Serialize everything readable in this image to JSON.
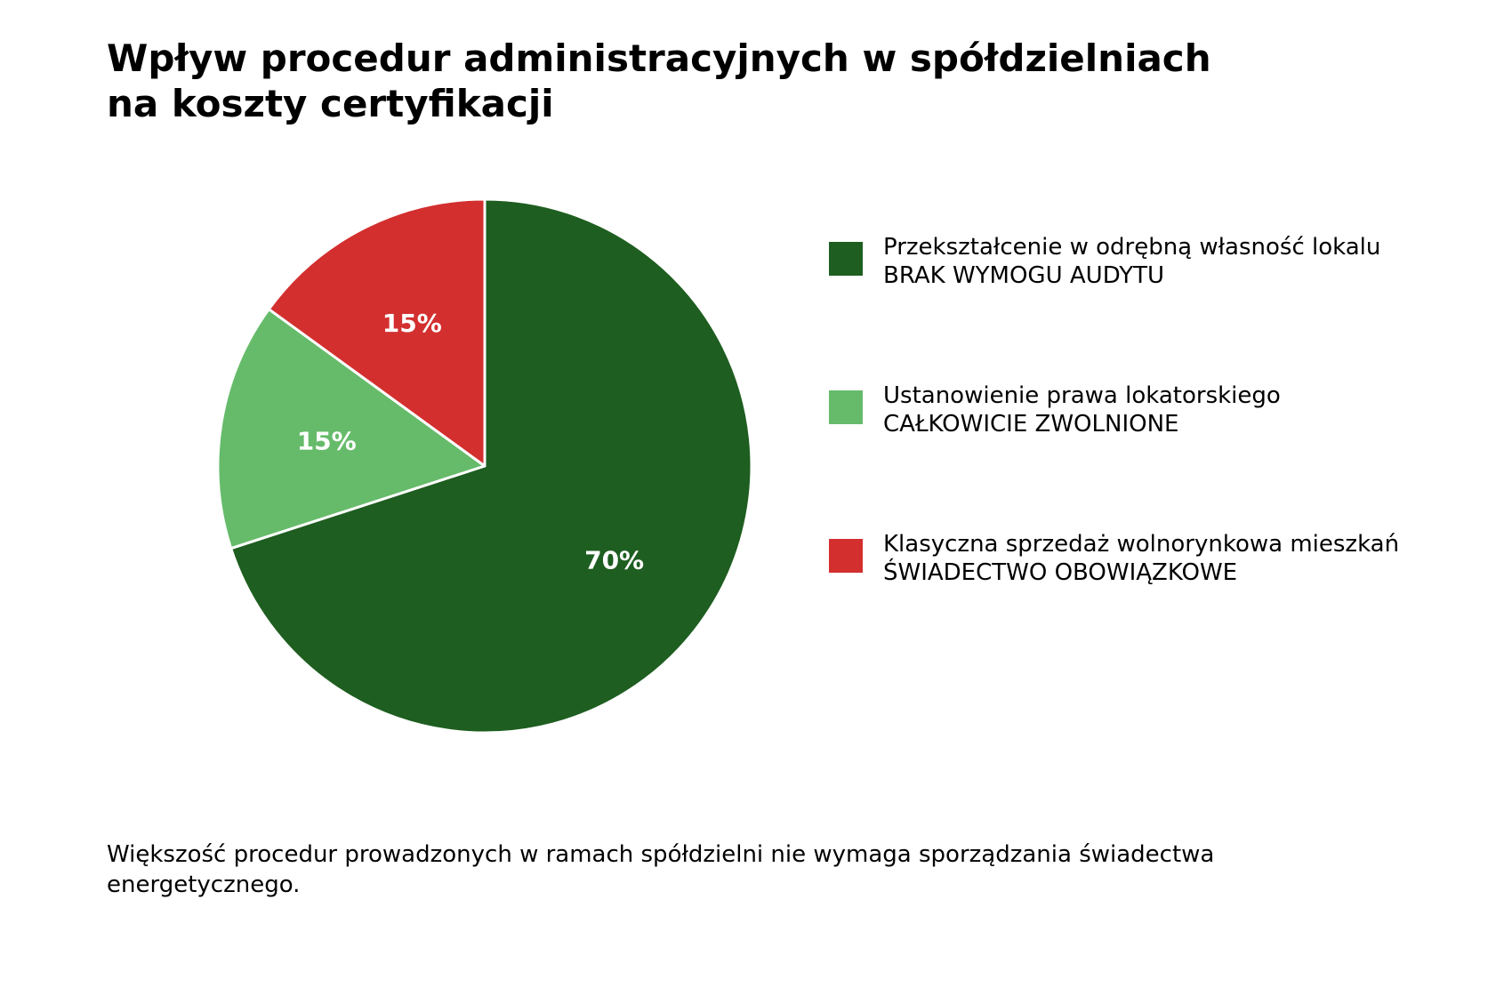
{
  "chart_data": {
    "type": "pie",
    "title_lines": [
      "Wpływ procedur administracyjnych w spółdzielniach",
      "na koszty certyfikacji"
    ],
    "slices": [
      {
        "label": "70%",
        "value": 70,
        "color": "#1e5e20",
        "legend_line1": "Przekształcenie w odrębną własność lokalu",
        "legend_line2": "BRAK WYMOGU AUDYTU"
      },
      {
        "label": "15%",
        "value": 15,
        "color": "#66bb6a",
        "legend_line1": "Ustanowienie prawa lokatorskiego",
        "legend_line2": "CAŁKOWICIE ZWOLNIONE"
      },
      {
        "label": "15%",
        "value": 15,
        "color": "#d32f2f",
        "legend_line1": "Klasyczna sprzedaż wolnorynkowa mieszkań",
        "legend_line2": "ŚWIADECTWO OBOWIĄZKOWE"
      }
    ],
    "start_angle_deg": 90,
    "direction": "clockwise",
    "legend_position": "right",
    "caption": "Większość procedur prowadzonych w ramach spółdzielni nie wymaga sporządzania świadectwa energetycznego."
  }
}
